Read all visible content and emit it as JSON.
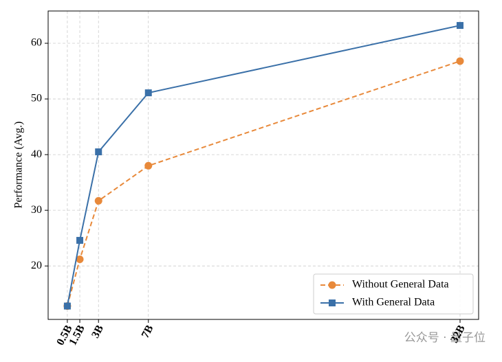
{
  "chart_data": {
    "type": "line",
    "y_label": "Performance (Avg.)",
    "x": [
      0.5,
      1.5,
      3,
      7,
      32
    ],
    "xlim": [
      -1.04,
      33.49
    ],
    "xticks": [
      {
        "value": 0.5,
        "label": "0.5B"
      },
      {
        "value": 1.5,
        "label": "1.5B"
      },
      {
        "value": 3,
        "label": "3B"
      },
      {
        "value": 7,
        "label": "7B"
      },
      {
        "value": 32,
        "label": "32B"
      }
    ],
    "ylim": [
      10.4,
      65.8
    ],
    "yticks": [
      20,
      30,
      40,
      50,
      60
    ],
    "grid": true,
    "legend": "lower right",
    "series": [
      {
        "name": "Without General Data",
        "color": "#e8893a",
        "linestyle": "dashed",
        "marker": "circle",
        "values": [
          12.8,
          21.2,
          31.7,
          38.0,
          56.8
        ]
      },
      {
        "name": "With General Data",
        "color": "#3a70a8",
        "linestyle": "solid",
        "marker": "square",
        "values": [
          12.8,
          24.6,
          40.5,
          51.1,
          63.2
        ]
      }
    ]
  },
  "watermark": "公众号 · 量子位"
}
